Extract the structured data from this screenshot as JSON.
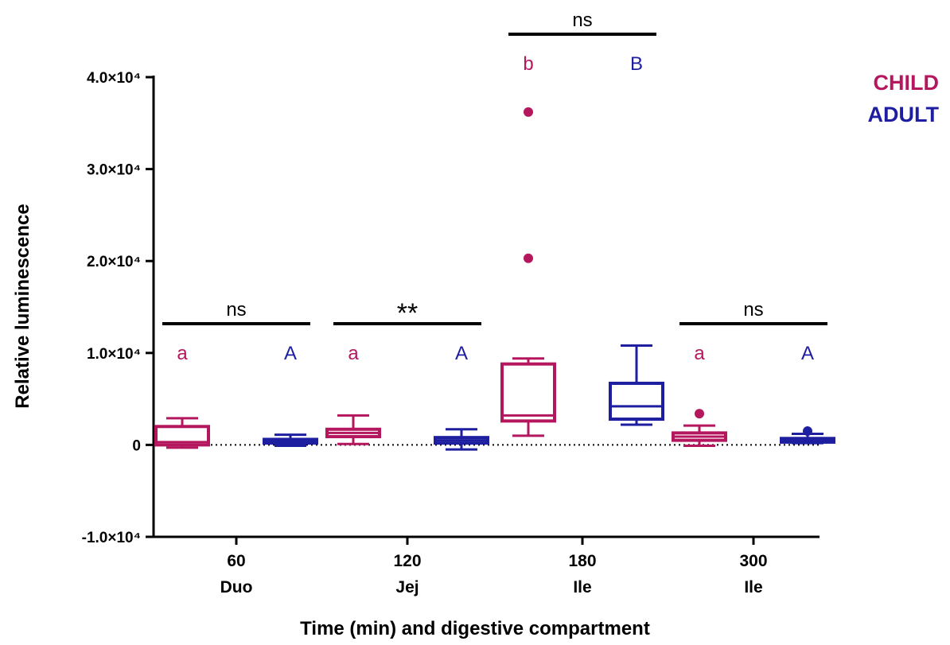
{
  "chart_data": {
    "type": "box",
    "xlabel": "Time (min) and digestive compartment",
    "ylabel": "Relative luminescence",
    "ylim": [
      -10000,
      40000
    ],
    "y_ticks": [
      {
        "value": 40000,
        "label": "4.0×10⁴"
      },
      {
        "value": 30000,
        "label": "3.0×10⁴"
      },
      {
        "value": 20000,
        "label": "2.0×10⁴"
      },
      {
        "value": 10000,
        "label": "1.0×10⁴"
      },
      {
        "value": 0,
        "label": "0"
      },
      {
        "value": -10000,
        "label": "-1.0×10⁴"
      }
    ],
    "reference_line": {
      "y": 0,
      "style": "dotted"
    },
    "categories": [
      {
        "time": "60",
        "compartment": "Duo"
      },
      {
        "time": "120",
        "compartment": "Jej"
      },
      {
        "time": "180",
        "compartment": "Ile"
      },
      {
        "time": "300",
        "compartment": "Ile"
      }
    ],
    "legend": {
      "placement": "top-right"
    },
    "series": [
      {
        "name": "CHILD",
        "color": "#b5175f",
        "boxes": [
          {
            "whisker_low": -300,
            "q1": 0,
            "median": 300,
            "q3": 2000,
            "whisker_high": 2900,
            "outliers": []
          },
          {
            "whisker_low": 100,
            "q1": 900,
            "median": 1300,
            "q3": 1700,
            "whisker_high": 3200,
            "outliers": []
          },
          {
            "whisker_low": 1000,
            "q1": 2600,
            "median": 3200,
            "q3": 8800,
            "whisker_high": 9400,
            "outliers": [
              20300,
              36200
            ]
          },
          {
            "whisker_low": -100,
            "q1": 500,
            "median": 900,
            "q3": 1300,
            "whisker_high": 2100,
            "outliers": [
              3400
            ]
          }
        ],
        "letters": [
          "a",
          "a",
          "b",
          "a"
        ]
      },
      {
        "name": "ADULT",
        "color": "#1e1ea0",
        "boxes": [
          {
            "whisker_low": -100,
            "q1": 200,
            "median": 400,
            "q3": 600,
            "whisker_high": 1100,
            "outliers": []
          },
          {
            "whisker_low": -500,
            "q1": 200,
            "median": 500,
            "q3": 800,
            "whisker_high": 1700,
            "outliers": []
          },
          {
            "whisker_low": 2200,
            "q1": 2800,
            "median": 4200,
            "q3": 6700,
            "whisker_high": 10800,
            "outliers": []
          },
          {
            "whisker_low": 200,
            "q1": 300,
            "median": 500,
            "q3": 700,
            "whisker_high": 1200,
            "outliers": [
              1500
            ]
          }
        ],
        "letters": [
          "A",
          "A",
          "B",
          "A"
        ]
      }
    ],
    "comparisons": [
      {
        "category_index": 0,
        "label": "ns"
      },
      {
        "category_index": 1,
        "label": "**"
      },
      {
        "category_index": 2,
        "label": "ns"
      },
      {
        "category_index": 3,
        "label": "ns"
      }
    ]
  }
}
